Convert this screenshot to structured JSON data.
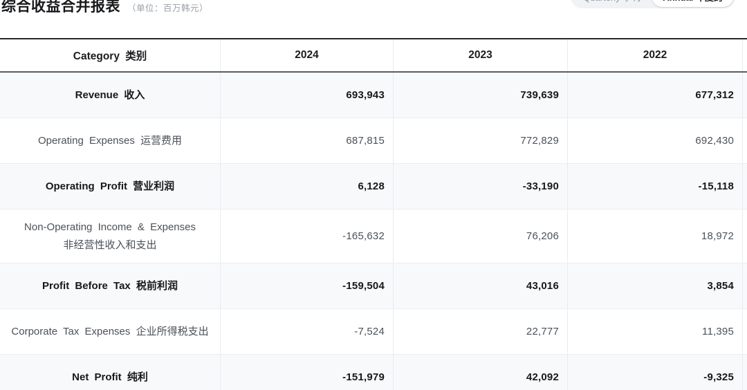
{
  "page": {
    "title": "综合收益合并报表",
    "unit_label": "（单位：百万韩元）"
  },
  "toggle": {
    "quarterly_label": "Quarterly 季刊",
    "annual_label": "Annual 年度的",
    "selected": "Annual 年度的"
  },
  "table": {
    "columns": [
      "Category 类别",
      "2024",
      "2023",
      "2022"
    ],
    "rows": [
      {
        "line1": "Revenue 收入",
        "line2": "",
        "values": [
          "693,943",
          "739,639",
          "677,312"
        ],
        "emphasis": true
      },
      {
        "line1": "Operating Expenses 运营费用",
        "line2": "",
        "values": [
          "687,815",
          "772,829",
          "692,430"
        ],
        "emphasis": false
      },
      {
        "line1": "Operating Profit 营业利润",
        "line2": "",
        "values": [
          "6,128",
          "-33,190",
          "-15,118"
        ],
        "emphasis": true
      },
      {
        "line1": "Non-Operating Income & Expenses",
        "line2": "非经营性收入和支出",
        "values": [
          "-165,632",
          "76,206",
          "18,972"
        ],
        "emphasis": false
      },
      {
        "line1": "Profit Before Tax 税前利润",
        "line2": "",
        "values": [
          "-159,504",
          "43,016",
          "3,854"
        ],
        "emphasis": true
      },
      {
        "line1": "Corporate Tax Expenses 企业所得税支出",
        "line2": "",
        "values": [
          "-7,524",
          "22,777",
          "11,395"
        ],
        "emphasis": false
      },
      {
        "line1": "Net Profit 纯利",
        "line2": "",
        "values": [
          "-151,979",
          "42,092",
          "-9,325"
        ],
        "emphasis": true
      }
    ]
  },
  "colors": {
    "header_border_top": "#26282b",
    "header_border_bottom": "#595b5f",
    "row_divider": "#ecedf0",
    "column_divider": "#e9ebee",
    "shaded_row_bg": "#f8f9fb",
    "emphasis_text": "#17181a",
    "regular_text": "#4b5158",
    "muted_text": "#9aa0a6",
    "toggle_bg": "#f1f2f5",
    "toggle_active_bg": "#ffffff"
  }
}
